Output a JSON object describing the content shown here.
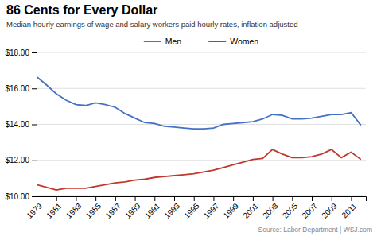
{
  "chart_data": {
    "type": "line",
    "title": "86 Cents for Every Dollar",
    "subtitle": "Median hourly earnings of wage and salary workers paid hourly rates, inflation adjusted",
    "annotations": [
      "Source: Labor Department  |  WSJ.com"
    ],
    "x": [
      1979,
      1980,
      1981,
      1982,
      1983,
      1984,
      1985,
      1986,
      1987,
      1988,
      1989,
      1990,
      1991,
      1992,
      1993,
      1994,
      1995,
      1996,
      1997,
      1998,
      1999,
      2000,
      2001,
      2002,
      2003,
      2004,
      2005,
      2006,
      2007,
      2008,
      2009,
      2010,
      2011,
      2012
    ],
    "series": [
      {
        "name": "Men",
        "color": "#4472c4",
        "values": [
          16.65,
          16.2,
          15.7,
          15.35,
          15.1,
          15.05,
          15.2,
          15.1,
          14.95,
          14.6,
          14.35,
          14.1,
          14.05,
          13.9,
          13.85,
          13.8,
          13.75,
          13.75,
          13.8,
          14.0,
          14.05,
          14.1,
          14.15,
          14.3,
          14.55,
          14.5,
          14.3,
          14.3,
          14.35,
          14.45,
          14.55,
          14.55,
          14.65,
          13.95
        ]
      },
      {
        "name": "Women",
        "color": "#c0392b",
        "values": [
          10.65,
          10.5,
          10.35,
          10.45,
          10.45,
          10.45,
          10.55,
          10.65,
          10.75,
          10.8,
          10.9,
          10.95,
          11.05,
          11.1,
          11.15,
          11.2,
          11.25,
          11.35,
          11.45,
          11.6,
          11.75,
          11.9,
          12.05,
          12.1,
          12.6,
          12.35,
          12.15,
          12.15,
          12.2,
          12.35,
          12.6,
          12.15,
          12.45,
          12.05
        ]
      }
    ],
    "xlim": [
      1979,
      2012.5
    ],
    "xticks": [
      1979,
      1981,
      1983,
      1985,
      1987,
      1989,
      1991,
      1993,
      1995,
      1997,
      1999,
      2001,
      2003,
      2005,
      2007,
      2009,
      2011
    ],
    "ylim": [
      10.0,
      18.0
    ],
    "yticks": [
      {
        "value": 10.0,
        "label": "$10.00"
      },
      {
        "value": 12.0,
        "label": "$12.00"
      },
      {
        "value": 14.0,
        "label": "$14.00"
      },
      {
        "value": 16.0,
        "label": "$16.00"
      },
      {
        "value": 18.0,
        "label": "$18.00"
      }
    ],
    "grid": true,
    "legend": "top"
  }
}
